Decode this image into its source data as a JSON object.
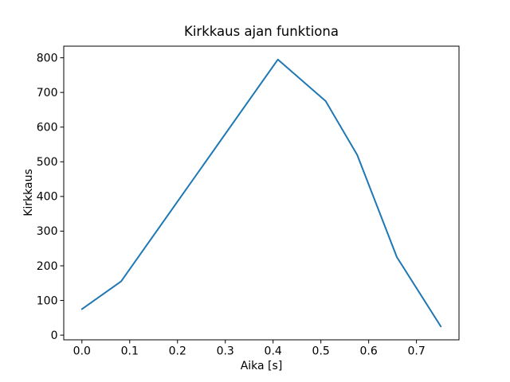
{
  "figure": {
    "background": "#ffffff",
    "text_color": "#000000",
    "spine_color": "#000000"
  },
  "chart_data": {
    "type": "line",
    "title": "Kirkkaus ajan funktiona",
    "xlabel": "Aika [s]",
    "ylabel": "Kirkkaus",
    "line_color": "#1f77b4",
    "line_width": 2,
    "x": [
      0.0,
      0.082,
      0.41,
      0.51,
      0.576,
      0.659,
      0.751
    ],
    "values": [
      75,
      155,
      795,
      675,
      520,
      225,
      25
    ],
    "xlim": [
      -0.038,
      0.789
    ],
    "ylim": [
      -13.5,
      833.5
    ],
    "x_ticks": [
      0.0,
      0.1,
      0.2,
      0.3,
      0.4,
      0.5,
      0.6,
      0.7
    ],
    "x_tick_labels": [
      "0.0",
      "0.1",
      "0.2",
      "0.3",
      "0.4",
      "0.5",
      "0.6",
      "0.7"
    ],
    "y_ticks": [
      0,
      100,
      200,
      300,
      400,
      500,
      600,
      700,
      800
    ],
    "y_tick_labels": [
      "0",
      "100",
      "200",
      "300",
      "400",
      "500",
      "600",
      "700",
      "800"
    ],
    "grid": false,
    "legend": null
  }
}
